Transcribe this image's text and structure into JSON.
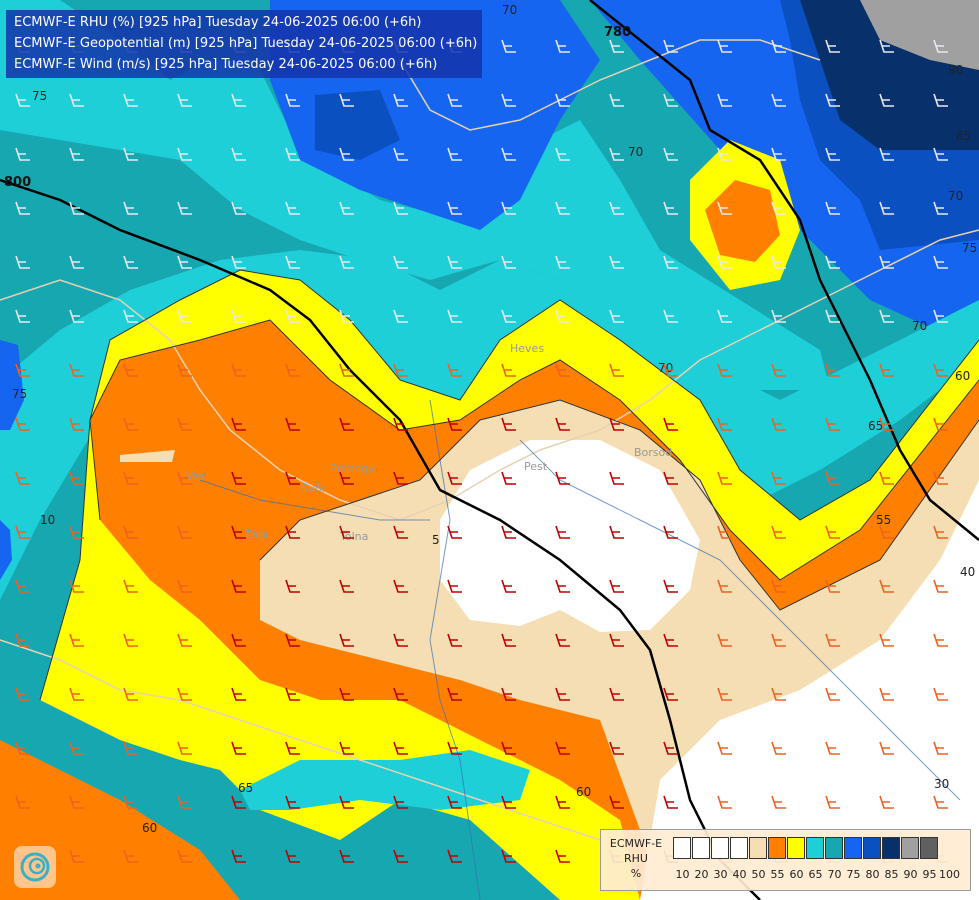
{
  "titles": {
    "line1": "ECMWF-E RHU (%) [925 hPa] Tuesday 24-06-2025 06:00 (+6h)",
    "line2": "ECMWF-E Geopotential (m) [925 hPa] Tuesday 24-06-2025 06:00 (+6h)",
    "line3": "ECMWF-E Wind (m/s) [925 hPa] Tuesday 24-06-2025 06:00 (+6h)"
  },
  "legend": {
    "model": "ECMWF-E",
    "variable": "RHU",
    "unit": "%",
    "levels": [
      "10",
      "20",
      "30",
      "40",
      "50",
      "55",
      "60",
      "65",
      "70",
      "75",
      "80",
      "85",
      "90",
      "95",
      "100"
    ],
    "colors": [
      "#ffffff",
      "#ffffff",
      "#ffffff",
      "#ffffff",
      "#f5deb3",
      "#ff8000",
      "#ffff00",
      "#1ecfd8",
      "#17a7b0",
      "#1565f0",
      "#0a50c0",
      "#08306b",
      "#a0a0a0",
      "#606060"
    ]
  },
  "contour_labels": {
    "rhu": [
      "70",
      "75",
      "70",
      "70",
      "60",
      "65",
      "55",
      "40",
      "30",
      "65",
      "60",
      "60",
      "75",
      "70",
      "90",
      "85",
      "75",
      "70",
      "10",
      "5"
    ],
    "geopotential": [
      "780",
      "800"
    ]
  },
  "places": [
    "Pest",
    "Heves",
    "Borsod",
    "Vas",
    "Zala",
    "Győr",
    "Somogy",
    "Tolna"
  ],
  "icons": {
    "logo": "swirl-logo-icon"
  }
}
